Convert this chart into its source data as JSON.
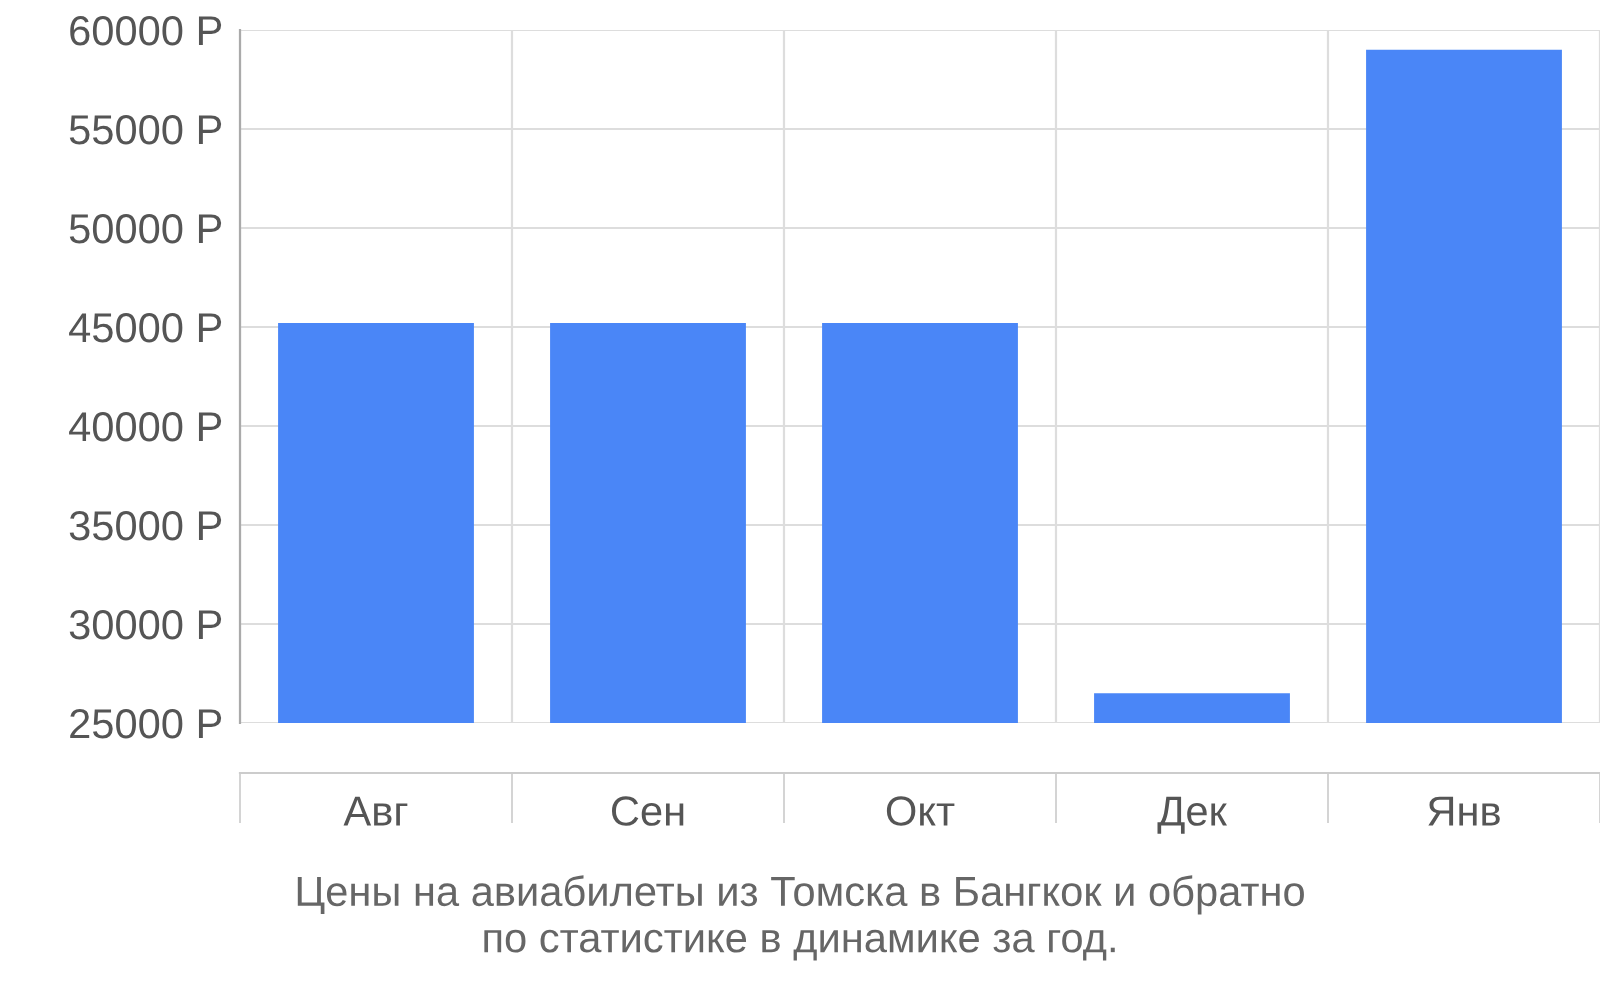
{
  "chart_data": {
    "type": "bar",
    "categories": [
      "Авг",
      "Сен",
      "Окт",
      "Дек",
      "Янв"
    ],
    "values": [
      45200,
      45200,
      45200,
      26500,
      59000
    ],
    "color": "#4a86f7",
    "ylim": [
      25000,
      60000
    ],
    "yticks": [
      {
        "value": 25000,
        "label": "25000 Р"
      },
      {
        "value": 30000,
        "label": "30000 Р"
      },
      {
        "value": 35000,
        "label": "35000 Р"
      },
      {
        "value": 40000,
        "label": "40000 Р"
      },
      {
        "value": 45000,
        "label": "45000 Р"
      },
      {
        "value": 50000,
        "label": "50000 Р"
      },
      {
        "value": 55000,
        "label": "55000 Р"
      },
      {
        "value": 60000,
        "label": "60000 Р"
      }
    ],
    "grid": true,
    "annotations": [
      "Цены на авиабилеты из Томска в Бангкок и обратно\nпо статистике в динамике за год."
    ]
  }
}
